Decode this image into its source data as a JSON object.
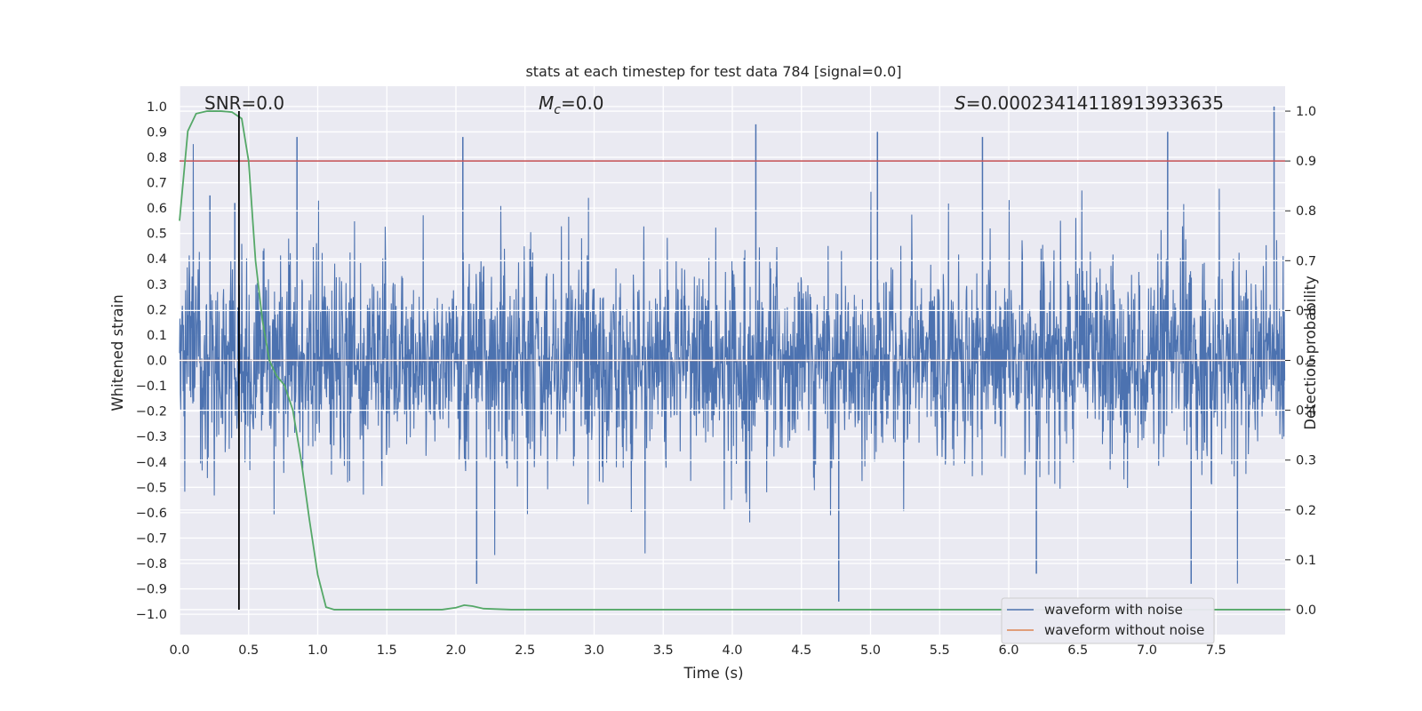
{
  "chart_data": {
    "type": "line",
    "title": "stats at each timestep for test data 784 [signal=0.0]",
    "xlabel": "Time (s)",
    "ylabel_left": "Whitened strain",
    "ylabel_right": "Detection probability",
    "xlim": [
      0.0,
      8.0
    ],
    "ylim_left": [
      -1.08,
      1.08
    ],
    "ylim_right": [
      -0.05,
      1.05
    ],
    "xticks": [
      "0.0",
      "0.5",
      "1.0",
      "1.5",
      "2.0",
      "2.5",
      "3.0",
      "3.5",
      "4.0",
      "4.5",
      "5.0",
      "5.5",
      "6.0",
      "6.5",
      "7.0",
      "7.5"
    ],
    "xtick_values": [
      0.0,
      0.5,
      1.0,
      1.5,
      2.0,
      2.5,
      3.0,
      3.5,
      4.0,
      4.5,
      5.0,
      5.5,
      6.0,
      6.5,
      7.0,
      7.5
    ],
    "yticks_left": [
      "1.0",
      "0.9",
      "0.8",
      "0.7",
      "0.6",
      "0.5",
      "0.4",
      "0.3",
      "0.2",
      "0.1",
      "0.0",
      "−0.1",
      "−0.2",
      "−0.3",
      "−0.4",
      "−0.5",
      "−0.6",
      "−0.7",
      "−0.8",
      "−0.9",
      "−1.0"
    ],
    "ytick_values_left": [
      1.0,
      0.9,
      0.8,
      0.7,
      0.6,
      0.5,
      0.4,
      0.3,
      0.2,
      0.1,
      0.0,
      -0.1,
      -0.2,
      -0.3,
      -0.4,
      -0.5,
      -0.6,
      -0.7,
      -0.8,
      -0.9,
      -1.0
    ],
    "yticks_right": [
      "1.0",
      "0.9",
      "0.8",
      "0.7",
      "0.6",
      "0.5",
      "0.4",
      "0.3",
      "0.2",
      "0.1",
      "0.0"
    ],
    "ytick_values_right": [
      1.0,
      0.9,
      0.8,
      0.7,
      0.6,
      0.5,
      0.4,
      0.3,
      0.2,
      0.1,
      0.0
    ],
    "annotations": {
      "snr": "SNR=0.0",
      "mc_symbol": "M",
      "mc_sub": "c",
      "mc_value": "=0.0",
      "s_symbol": "S",
      "s_value": "=0.00023414118913933635"
    },
    "legend": {
      "placement": "lower-right",
      "entries": [
        {
          "label": "waveform with noise",
          "color": "#4c72b0"
        },
        {
          "label": "waveform without noise",
          "color": "#dd8452"
        }
      ]
    },
    "threshold_line": {
      "axis": "right",
      "value": 0.9,
      "color": "#c44e52"
    },
    "marker_line": {
      "x": 0.43,
      "y_from": 0.0,
      "y_to": 1.0,
      "axis": "right",
      "color": "#000000"
    },
    "series": [
      {
        "name": "waveform with noise",
        "axis": "left",
        "color": "#4c72b0",
        "noise_envelope": {
          "x_start": 0.0,
          "x_end": 8.0,
          "typical_amplitude": 0.45,
          "peak_max": 1.0,
          "peak_min": -0.95
        }
      },
      {
        "name": "waveform without noise",
        "axis": "left",
        "color": "#dd8452",
        "x": [
          0.0,
          8.0
        ],
        "y": [
          0.0,
          0.0
        ]
      },
      {
        "axis": "right",
        "color": "#55a868",
        "x": [
          0.0,
          0.06,
          0.12,
          0.2,
          0.3,
          0.38,
          0.45,
          0.5,
          0.55,
          0.6,
          0.65,
          0.7,
          0.76,
          0.82,
          0.88,
          0.94,
          1.0,
          1.06,
          1.12,
          1.3,
          1.6,
          1.9,
          2.0,
          2.06,
          2.12,
          2.2,
          2.4,
          3.0,
          4.0,
          5.0,
          6.0,
          7.0,
          8.0
        ],
        "y": [
          0.78,
          0.96,
          0.995,
          1.0,
          1.0,
          0.998,
          0.985,
          0.9,
          0.7,
          0.58,
          0.5,
          0.47,
          0.45,
          0.4,
          0.3,
          0.18,
          0.07,
          0.005,
          0.0,
          0.0,
          0.0,
          0.0,
          0.004,
          0.009,
          0.007,
          0.002,
          0.0,
          0.0,
          0.0,
          0.0,
          0.0,
          0.0,
          0.0
        ]
      }
    ]
  }
}
